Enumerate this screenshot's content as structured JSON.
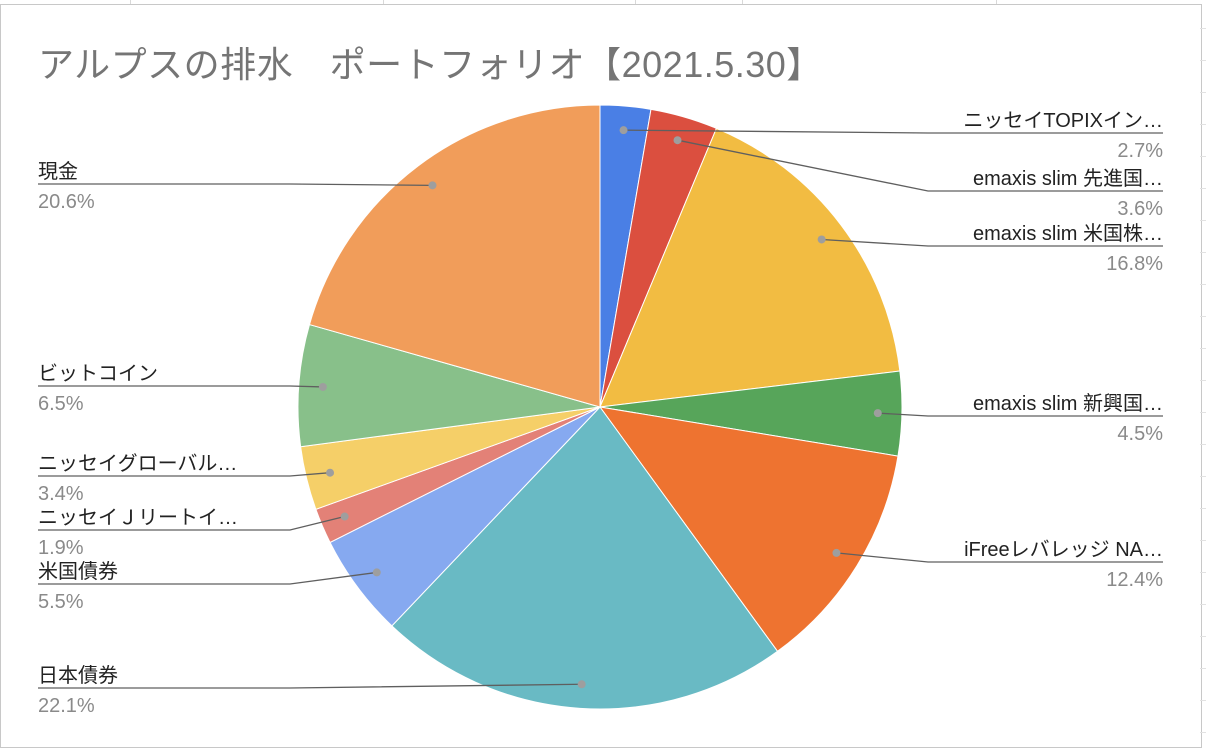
{
  "chart_data": {
    "type": "pie",
    "title": "アルプスの排水　ポートフォリオ【2021.5.30】",
    "slices": [
      {
        "label": "ニッセイTOPIXイン…",
        "value": 2.7,
        "display": "2.7%",
        "color": "#4a7fe5"
      },
      {
        "label": "emaxis slim 先進国…",
        "value": 3.6,
        "display": "3.6%",
        "color": "#db4f3f"
      },
      {
        "label": "emaxis slim 米国株…",
        "value": 16.8,
        "display": "16.8%",
        "color": "#f2bc42"
      },
      {
        "label": "emaxis slim 新興国…",
        "value": 4.5,
        "display": "4.5%",
        "color": "#57a55a"
      },
      {
        "label": "iFreeレバレッジ NA…",
        "value": 12.4,
        "display": "12.4%",
        "color": "#ee7330"
      },
      {
        "label": "日本債券",
        "value": 22.1,
        "display": "22.1%",
        "color": "#69bac4"
      },
      {
        "label": "米国債券",
        "value": 5.5,
        "display": "5.5%",
        "color": "#86a9f0"
      },
      {
        "label": "ニッセイＪリートイ…",
        "value": 1.9,
        "display": "1.9%",
        "color": "#e38177"
      },
      {
        "label": "ニッセイグローバル…",
        "value": 3.4,
        "display": "3.4%",
        "color": "#f5cf68"
      },
      {
        "label": "ビットコイン",
        "value": 6.5,
        "display": "6.5%",
        "color": "#88c08a"
      },
      {
        "label": "現金",
        "value": 20.6,
        "display": "20.6%",
        "color": "#f19d5a"
      }
    ],
    "legend": "none",
    "label_style": "leader-lines"
  }
}
